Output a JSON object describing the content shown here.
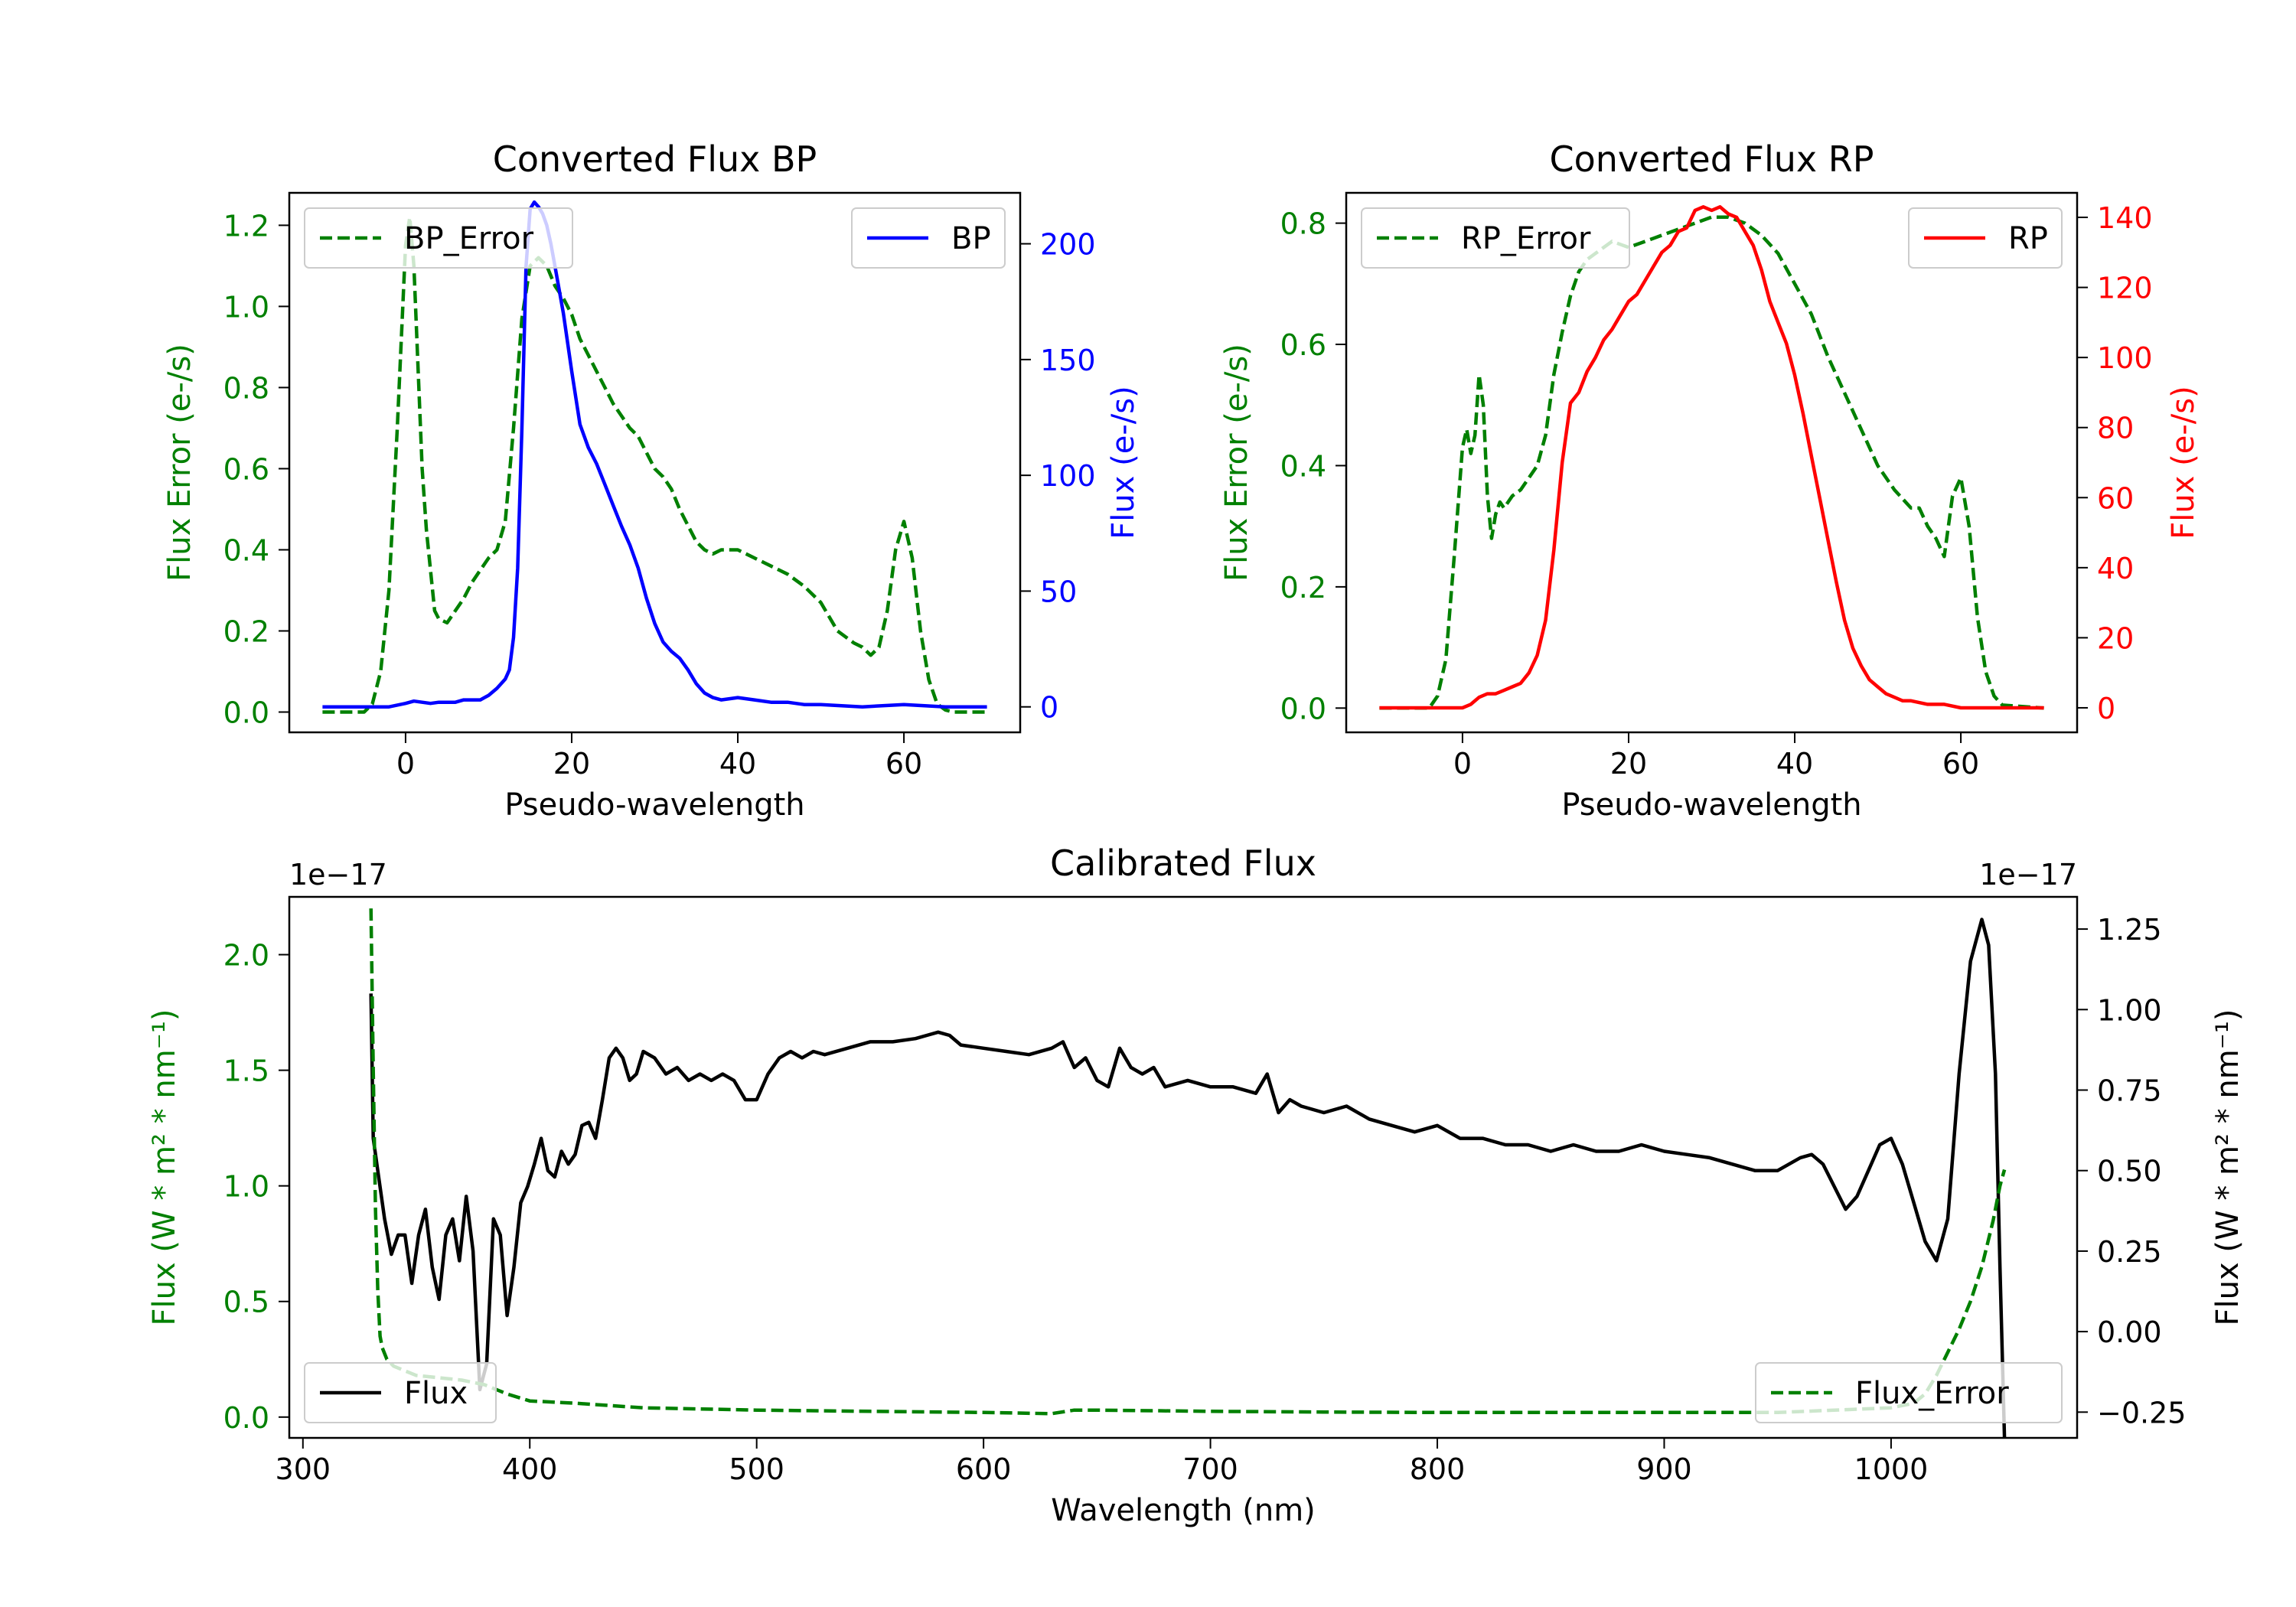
{
  "chart_data": [
    {
      "type": "line",
      "title": "Converted Flux BP",
      "xlabel": "Pseudo-wavelength",
      "xlim": [
        -14,
        74
      ],
      "xticks": [
        0,
        20,
        40,
        60
      ],
      "left_axis": {
        "label": "Flux Error (e-/s)",
        "color": "#008000",
        "ylim": [
          -0.05,
          1.28
        ],
        "ticks": [
          0.0,
          0.2,
          0.4,
          0.6,
          0.8,
          1.0,
          1.2
        ],
        "tick_labels": [
          "0.0",
          "0.2",
          "0.4",
          "0.6",
          "0.8",
          "1.0",
          "1.2"
        ]
      },
      "right_axis": {
        "label": "Flux (e-/s)",
        "color": "#0000ff",
        "ylim": [
          -11,
          222
        ],
        "ticks": [
          0,
          50,
          100,
          150,
          200
        ],
        "tick_labels": [
          "0",
          "50",
          "100",
          "150",
          "200"
        ]
      },
      "series": [
        {
          "name": "BP_Error",
          "axis": "left",
          "style": "dashed",
          "color": "#008000",
          "x": [
            -10,
            -5,
            -4,
            -3,
            -2,
            -1,
            0,
            0.5,
            1,
            1.5,
            2,
            2.5,
            3,
            3.5,
            4,
            5,
            6,
            7,
            8,
            9,
            10,
            11,
            12,
            13,
            14,
            15,
            16,
            17,
            18,
            19,
            20,
            21,
            22,
            23,
            24,
            25,
            26,
            27,
            28,
            29,
            30,
            31,
            32,
            33,
            34,
            35,
            36,
            37,
            38,
            40,
            42,
            44,
            46,
            48,
            50,
            52,
            54,
            55,
            56,
            57,
            58,
            59,
            60,
            61,
            62,
            63,
            64,
            65,
            66,
            70
          ],
          "values": [
            0,
            0,
            0.02,
            0.1,
            0.3,
            0.7,
            1.15,
            1.22,
            1.1,
            0.85,
            0.6,
            0.45,
            0.35,
            0.25,
            0.23,
            0.22,
            0.25,
            0.28,
            0.32,
            0.35,
            0.38,
            0.4,
            0.47,
            0.7,
            0.97,
            1.1,
            1.12,
            1.1,
            1.05,
            1.02,
            0.98,
            0.92,
            0.88,
            0.84,
            0.8,
            0.76,
            0.73,
            0.7,
            0.68,
            0.64,
            0.6,
            0.58,
            0.55,
            0.5,
            0.46,
            0.42,
            0.4,
            0.39,
            0.4,
            0.4,
            0.38,
            0.36,
            0.34,
            0.31,
            0.27,
            0.2,
            0.17,
            0.16,
            0.14,
            0.16,
            0.25,
            0.4,
            0.47,
            0.38,
            0.2,
            0.08,
            0.02,
            0.005,
            0,
            0
          ]
        },
        {
          "name": "BP",
          "axis": "right",
          "style": "solid",
          "color": "#0000ff",
          "x": [
            -10,
            -2,
            0,
            1,
            2,
            3,
            4,
            5,
            6,
            7,
            8,
            9,
            10,
            11,
            12,
            12.5,
            13,
            13.5,
            14,
            14.5,
            15,
            15.5,
            16,
            16.5,
            17,
            17.5,
            18,
            19,
            20,
            21,
            22,
            23,
            24,
            25,
            26,
            27,
            28,
            29,
            30,
            31,
            32,
            33,
            34,
            35,
            36,
            37,
            38,
            40,
            42,
            44,
            46,
            48,
            50,
            55,
            60,
            65,
            70
          ],
          "values": [
            0,
            0,
            1.5,
            2.5,
            2,
            1.5,
            2,
            2,
            2,
            3,
            3,
            3,
            5,
            8,
            12,
            16,
            30,
            60,
            120,
            190,
            215,
            218,
            216,
            213,
            208,
            200,
            190,
            170,
            145,
            122,
            112,
            105,
            96,
            87,
            78,
            70,
            60,
            47,
            36,
            28,
            24,
            21,
            16,
            10,
            6,
            4,
            3,
            4,
            3,
            2,
            2,
            1,
            1,
            0,
            1,
            0,
            0
          ]
        }
      ],
      "legends": {
        "left": "BP_Error",
        "right": "BP"
      }
    },
    {
      "type": "line",
      "title": "Converted Flux RP",
      "xlabel": "Pseudo-wavelength",
      "xlim": [
        -14,
        74
      ],
      "xticks": [
        0,
        20,
        40,
        60
      ],
      "left_axis": {
        "label": "Flux Error (e-/s)",
        "color": "#008000",
        "ylim": [
          -0.04,
          0.85
        ],
        "ticks": [
          0.0,
          0.2,
          0.4,
          0.6,
          0.8
        ],
        "tick_labels": [
          "0.0",
          "0.2",
          "0.4",
          "0.6",
          "0.8"
        ]
      },
      "right_axis": {
        "label": "Flux (e-/s)",
        "color": "#ff0000",
        "ylim": [
          -7,
          147
        ],
        "ticks": [
          0,
          20,
          40,
          60,
          80,
          100,
          120,
          140
        ],
        "tick_labels": [
          "0",
          "20",
          "40",
          "60",
          "80",
          "100",
          "120",
          "140"
        ]
      },
      "series": [
        {
          "name": "RP_Error",
          "axis": "left",
          "style": "dashed",
          "color": "#008000",
          "x": [
            -10,
            -4,
            -3,
            -2,
            -1,
            0,
            0.5,
            1,
            1.5,
            2,
            2.5,
            3,
            3.5,
            4,
            4.5,
            5,
            6,
            7,
            8,
            9,
            10,
            11,
            12,
            13,
            14,
            15,
            16,
            18,
            20,
            22,
            24,
            26,
            28,
            30,
            32,
            34,
            36,
            38,
            40,
            42,
            44,
            46,
            48,
            50,
            52,
            54,
            55,
            56,
            57,
            58,
            59,
            60,
            61,
            62,
            63,
            64,
            65,
            70
          ],
          "values": [
            0,
            0,
            0.02,
            0.08,
            0.25,
            0.43,
            0.46,
            0.42,
            0.45,
            0.55,
            0.5,
            0.35,
            0.28,
            0.32,
            0.34,
            0.33,
            0.35,
            0.36,
            0.38,
            0.4,
            0.45,
            0.55,
            0.62,
            0.68,
            0.72,
            0.74,
            0.75,
            0.77,
            0.76,
            0.77,
            0.78,
            0.79,
            0.8,
            0.81,
            0.81,
            0.8,
            0.78,
            0.75,
            0.7,
            0.65,
            0.58,
            0.52,
            0.46,
            0.4,
            0.36,
            0.33,
            0.33,
            0.3,
            0.28,
            0.25,
            0.35,
            0.38,
            0.3,
            0.15,
            0.06,
            0.02,
            0.005,
            0
          ]
        },
        {
          "name": "RP",
          "axis": "right",
          "style": "solid",
          "color": "#ff0000",
          "x": [
            -10,
            -1,
            0,
            1,
            2,
            3,
            4,
            5,
            6,
            7,
            8,
            9,
            10,
            11,
            12,
            13,
            14,
            15,
            16,
            17,
            18,
            19,
            20,
            21,
            22,
            23,
            24,
            25,
            26,
            27,
            28,
            29,
            30,
            31,
            32,
            33,
            34,
            35,
            36,
            37,
            38,
            39,
            40,
            41,
            42,
            43,
            44,
            45,
            46,
            47,
            48,
            49,
            50,
            51,
            52,
            53,
            54,
            56,
            58,
            60,
            62,
            65,
            70
          ],
          "values": [
            0,
            0,
            0,
            1,
            3,
            4,
            4,
            5,
            6,
            7,
            10,
            15,
            25,
            45,
            70,
            87,
            90,
            96,
            100,
            105,
            108,
            112,
            116,
            118,
            122,
            126,
            130,
            132,
            136,
            137,
            142,
            143,
            142,
            143,
            141,
            140,
            136,
            132,
            125,
            116,
            110,
            104,
            95,
            84,
            72,
            60,
            48,
            36,
            25,
            17,
            12,
            8,
            6,
            4,
            3,
            2,
            2,
            1,
            1,
            0,
            0,
            0,
            0
          ]
        }
      ],
      "legends": {
        "left": "RP_Error",
        "right": "RP"
      }
    },
    {
      "type": "line",
      "title": "Calibrated Flux",
      "xlabel": "Wavelength (nm)",
      "xlim": [
        294,
        1082
      ],
      "xticks": [
        300,
        400,
        500,
        600,
        700,
        800,
        900,
        1000
      ],
      "left_axis": {
        "label": "Flux (W * m² * nm⁻¹)",
        "color": "#008000",
        "offset": "1e−17",
        "ylim": [
          -0.09,
          2.25
        ],
        "ticks": [
          0.0,
          0.5,
          1.0,
          1.5,
          2.0
        ],
        "tick_labels": [
          "0.0",
          "0.5",
          "1.0",
          "1.5",
          "2.0"
        ]
      },
      "right_axis": {
        "label": "Flux (W * m² * nm⁻¹)",
        "color": "#000000",
        "offset": "1e−17",
        "ylim": [
          -0.33,
          1.35
        ],
        "ticks": [
          -0.25,
          0.0,
          0.25,
          0.5,
          0.75,
          1.0,
          1.25
        ],
        "tick_labels": [
          "−0.25",
          "0.00",
          "0.25",
          "0.50",
          "0.75",
          "1.00",
          "1.25"
        ]
      },
      "series": [
        {
          "name": "Flux",
          "axis": "right",
          "style": "solid",
          "color": "#000000",
          "x": [
            330,
            331,
            333,
            336,
            339,
            342,
            345,
            348,
            351,
            354,
            357,
            360,
            363,
            366,
            369,
            372,
            375,
            378,
            381,
            384,
            387,
            390,
            393,
            396,
            399,
            402,
            405,
            408,
            411,
            414,
            417,
            420,
            423,
            426,
            429,
            432,
            435,
            438,
            441,
            444,
            447,
            450,
            455,
            460,
            465,
            470,
            475,
            480,
            485,
            490,
            495,
            500,
            505,
            510,
            515,
            520,
            525,
            530,
            540,
            550,
            560,
            570,
            575,
            580,
            585,
            590,
            600,
            610,
            620,
            630,
            635,
            640,
            645,
            650,
            655,
            660,
            665,
            670,
            675,
            680,
            690,
            700,
            710,
            720,
            725,
            730,
            735,
            740,
            750,
            760,
            770,
            780,
            790,
            800,
            810,
            820,
            830,
            840,
            850,
            860,
            870,
            880,
            890,
            900,
            910,
            920,
            930,
            940,
            950,
            960,
            965,
            970,
            975,
            980,
            985,
            990,
            995,
            1000,
            1005,
            1010,
            1015,
            1020,
            1025,
            1030,
            1035,
            1040,
            1043,
            1046,
            1048,
            1050
          ],
          "values": [
            1.05,
            0.6,
            0.5,
            0.35,
            0.24,
            0.3,
            0.3,
            0.15,
            0.3,
            0.38,
            0.2,
            0.1,
            0.3,
            0.35,
            0.22,
            0.42,
            0.25,
            -0.18,
            -0.1,
            0.35,
            0.3,
            0.05,
            0.2,
            0.4,
            0.45,
            0.52,
            0.6,
            0.5,
            0.48,
            0.56,
            0.52,
            0.55,
            0.64,
            0.65,
            0.6,
            0.72,
            0.85,
            0.88,
            0.85,
            0.78,
            0.8,
            0.87,
            0.85,
            0.8,
            0.82,
            0.78,
            0.8,
            0.78,
            0.8,
            0.78,
            0.72,
            0.72,
            0.8,
            0.85,
            0.87,
            0.85,
            0.87,
            0.86,
            0.88,
            0.9,
            0.9,
            0.91,
            0.92,
            0.93,
            0.92,
            0.89,
            0.88,
            0.87,
            0.86,
            0.88,
            0.9,
            0.82,
            0.85,
            0.78,
            0.76,
            0.88,
            0.82,
            0.8,
            0.82,
            0.76,
            0.78,
            0.76,
            0.76,
            0.74,
            0.8,
            0.68,
            0.72,
            0.7,
            0.68,
            0.7,
            0.66,
            0.64,
            0.62,
            0.64,
            0.6,
            0.6,
            0.58,
            0.58,
            0.56,
            0.58,
            0.56,
            0.56,
            0.58,
            0.56,
            0.55,
            0.54,
            0.52,
            0.5,
            0.5,
            0.54,
            0.55,
            0.52,
            0.45,
            0.38,
            0.42,
            0.5,
            0.58,
            0.6,
            0.52,
            0.4,
            0.28,
            0.22,
            0.35,
            0.8,
            1.15,
            1.28,
            1.2,
            0.8,
            0.2,
            -0.33
          ]
        },
        {
          "name": "Flux_Error",
          "axis": "left",
          "style": "dashed",
          "color": "#008000",
          "x": [
            330,
            331,
            332,
            333,
            334,
            335,
            337,
            340,
            345,
            350,
            360,
            370,
            380,
            390,
            400,
            420,
            450,
            500,
            550,
            600,
            630,
            640,
            650,
            700,
            750,
            800,
            850,
            900,
            950,
            1000,
            1010,
            1015,
            1020,
            1025,
            1030,
            1035,
            1040,
            1045,
            1048,
            1050
          ],
          "values": [
            2.2,
            1.5,
            0.9,
            0.55,
            0.35,
            0.3,
            0.25,
            0.22,
            0.2,
            0.18,
            0.17,
            0.16,
            0.14,
            0.1,
            0.07,
            0.06,
            0.04,
            0.03,
            0.025,
            0.02,
            0.015,
            0.03,
            0.03,
            0.025,
            0.022,
            0.02,
            0.02,
            0.02,
            0.02,
            0.04,
            0.06,
            0.1,
            0.18,
            0.28,
            0.38,
            0.5,
            0.65,
            0.85,
            1.0,
            1.07
          ]
        }
      ],
      "legends": {
        "left": "Flux",
        "right": "Flux_Error"
      }
    }
  ]
}
